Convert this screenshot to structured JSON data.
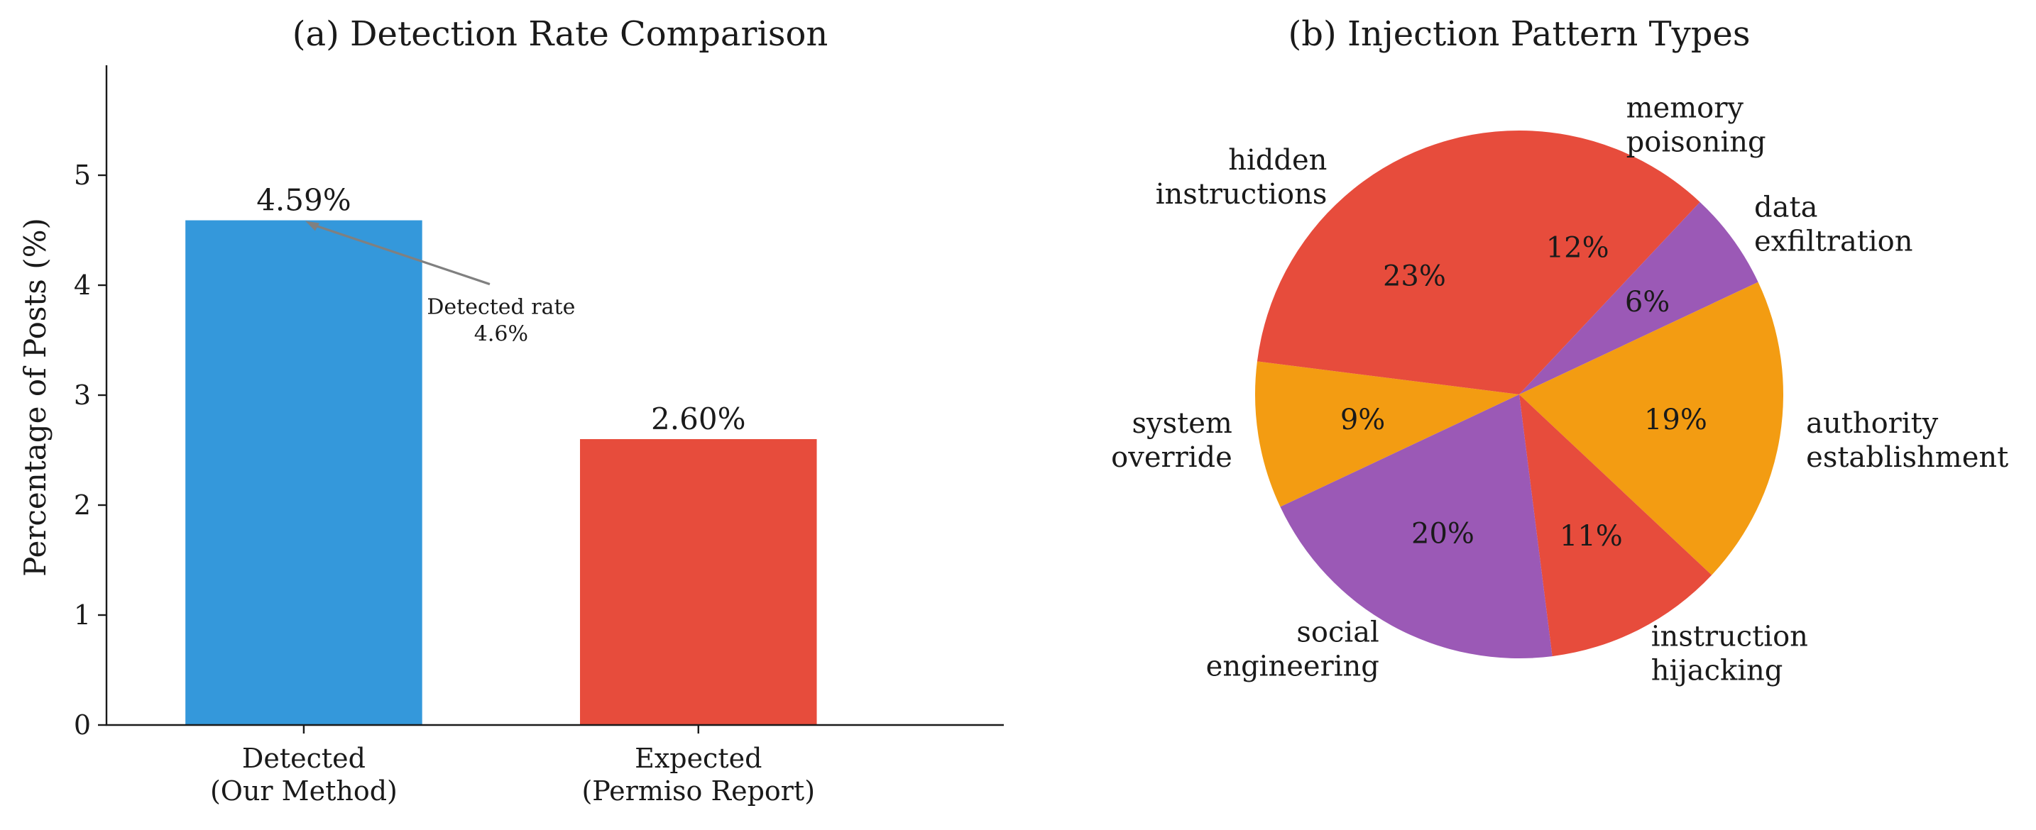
{
  "chart_data": [
    {
      "type": "bar",
      "title": "(a) Detection Rate Comparison",
      "xlabel": "",
      "ylabel": "Percentage of Posts (%)",
      "ylim": [
        0,
        6
      ],
      "yticks": [
        "0",
        "1",
        "2",
        "3",
        "4",
        "5"
      ],
      "categories": [
        [
          "Detected",
          "(Our Method)"
        ],
        [
          "Expected",
          "(Permiso Report)"
        ]
      ],
      "values": [
        4.59,
        2.6
      ],
      "value_labels": [
        "4.59%",
        "2.60%"
      ],
      "colors": [
        "#3498db",
        "#e74c3c"
      ],
      "annotation": {
        "lines": [
          "Detected rate",
          "4.6%"
        ],
        "points_to_value": 4.59,
        "arrow_color": "#808080"
      },
      "grid": false
    },
    {
      "type": "pie",
      "title": "(b) Injection Pattern Types",
      "start_angle_deg": 90,
      "direction": "clockwise",
      "slices": [
        {
          "label": [
            "memory",
            "poisoning"
          ],
          "value": 12,
          "pct_label": "12%",
          "color": "#e74c3c"
        },
        {
          "label": [
            "data",
            "exfiltration"
          ],
          "value": 6,
          "pct_label": "6%",
          "color": "#9b59b6"
        },
        {
          "label": [
            "authority",
            "establishment"
          ],
          "value": 19,
          "pct_label": "19%",
          "color": "#f39c12"
        },
        {
          "label": [
            "instruction",
            "hijacking"
          ],
          "value": 11,
          "pct_label": "11%",
          "color": "#e74c3c"
        },
        {
          "label": [
            "social",
            "engineering"
          ],
          "value": 20,
          "pct_label": "20%",
          "color": "#9b59b6"
        },
        {
          "label": [
            "system",
            "override"
          ],
          "value": 9,
          "pct_label": "9%",
          "color": "#f39c12"
        },
        {
          "label": [
            "hidden",
            "instructions"
          ],
          "value": 23,
          "pct_label": "23%",
          "color": "#e74c3c"
        }
      ]
    }
  ]
}
